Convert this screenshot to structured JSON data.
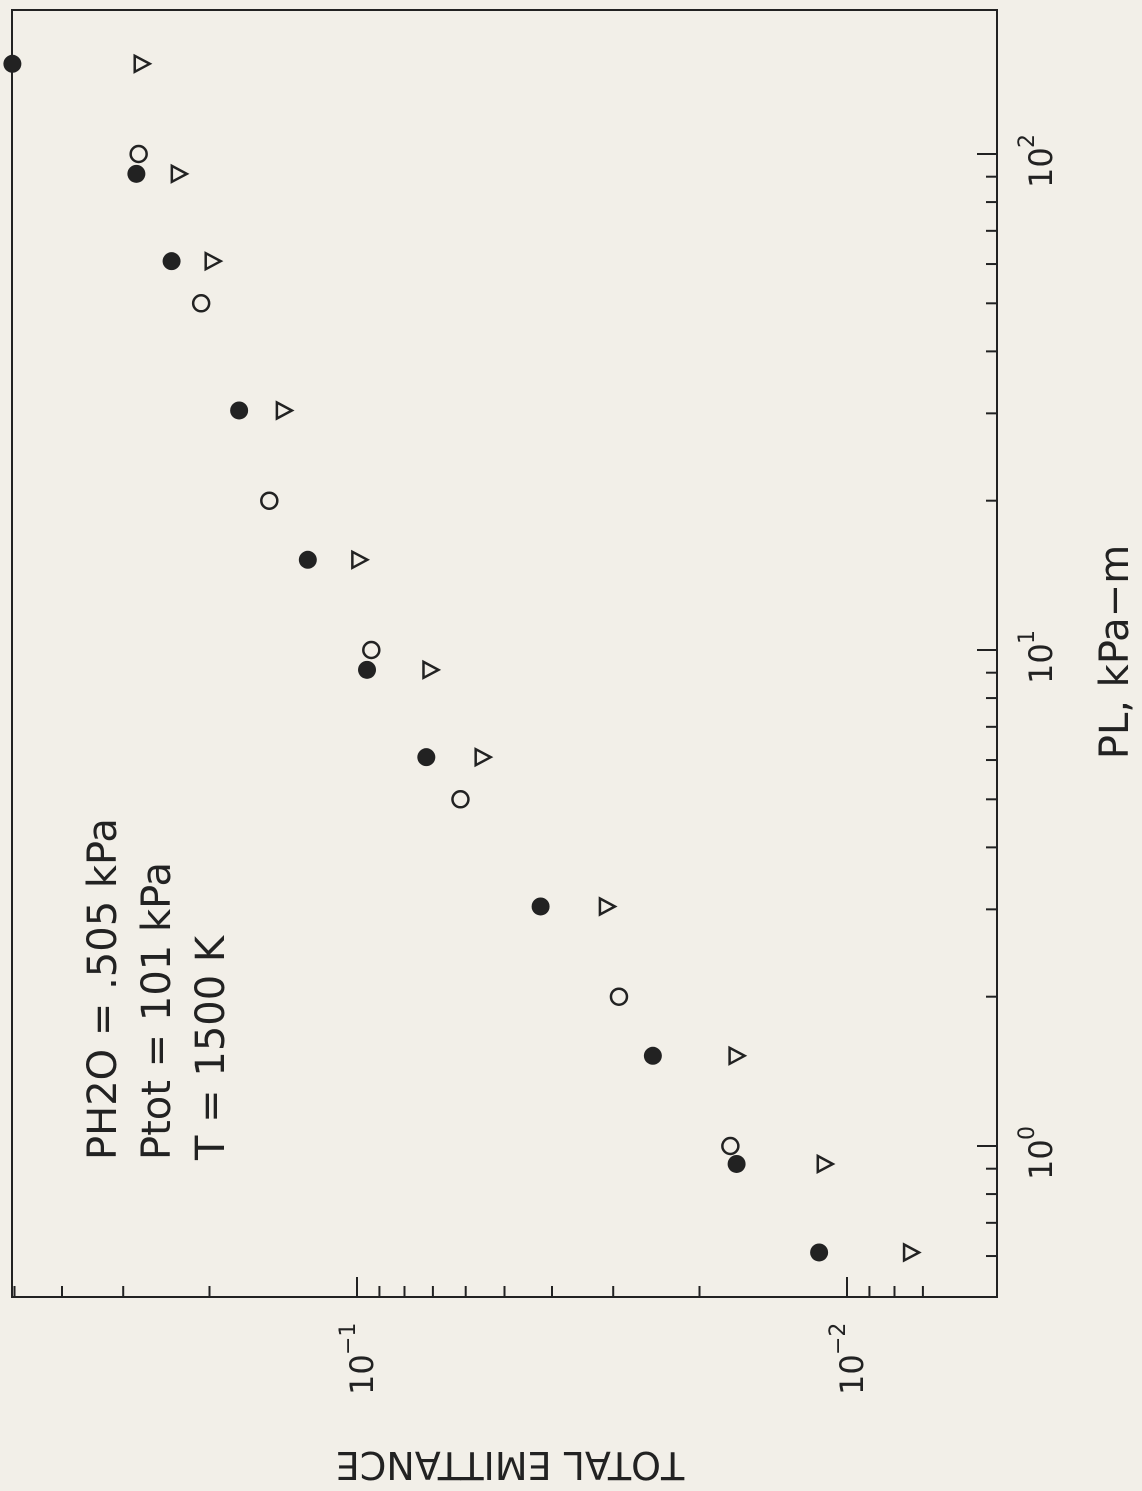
{
  "chart_data": {
    "type": "scatter",
    "title": "",
    "xlabel": "PL, kPa−m",
    "ylabel": "TOTAL EMITTANCE",
    "xscale": "log",
    "yscale": "log",
    "xlim": [
      0.53,
      195
    ],
    "ylim": [
      0.0063,
      0.58
    ],
    "x_ticks": [
      {
        "value": 1,
        "base": "10",
        "exp": "0"
      },
      {
        "value": 10,
        "base": "10",
        "exp": "1"
      },
      {
        "value": 100,
        "base": "10",
        "exp": "2"
      }
    ],
    "y_ticks": [
      {
        "value": 0.1,
        "base": "10",
        "exp": "−1"
      },
      {
        "value": 0.01,
        "base": "10",
        "exp": "−2"
      }
    ],
    "orientation": "rotated 90 degrees counter-clockwise (x axis runs bottom to top on the right side)",
    "annotation": [
      "PH2O = .505 kPa",
      "Ptot = 101 kPa",
      "T = 1500 K"
    ],
    "grid": false,
    "series": [
      {
        "marker": "filled-circle",
        "x": [
          0.61,
          0.92,
          1.52,
          3.04,
          6.08,
          9.12,
          15.2,
          30.4,
          60.8,
          91.2,
          152
        ],
        "y": [
          0.0114,
          0.0168,
          0.0249,
          0.0422,
          0.0722,
          0.0954,
          0.126,
          0.174,
          0.239,
          0.282,
          0.505
        ]
      },
      {
        "marker": "open-circle",
        "x": [
          1.0,
          2.0,
          5.0,
          10.0,
          20.0,
          50.0,
          100.0
        ],
        "y": [
          0.0173,
          0.0292,
          0.0615,
          0.0935,
          0.151,
          0.208,
          0.279
        ]
      },
      {
        "marker": "open-triangle",
        "x": [
          0.61,
          0.92,
          1.52,
          3.04,
          6.08,
          9.12,
          15.2,
          30.4,
          60.8,
          91.2,
          152
        ],
        "y": [
          0.0074,
          0.0111,
          0.0168,
          0.0309,
          0.0554,
          0.0708,
          0.0989,
          0.141,
          0.197,
          0.231,
          0.275
        ]
      }
    ]
  }
}
